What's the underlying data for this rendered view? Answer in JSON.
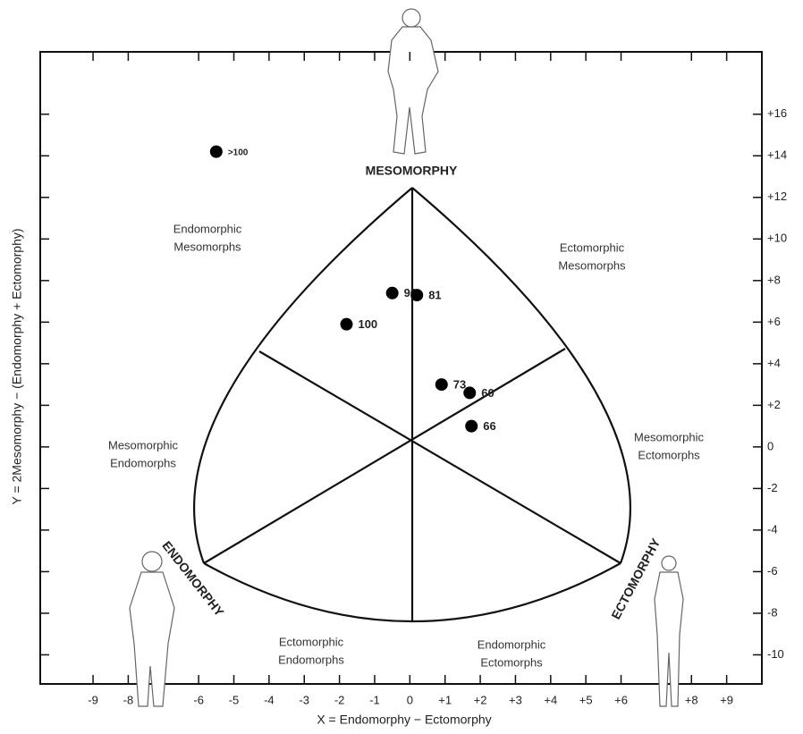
{
  "chart_data": {
    "type": "scatter",
    "x_label": "X = Endomorphy − Ectomorphy",
    "y_label": "Y = 2Mesomorphy − (Endomorphy + Ectomorphy)",
    "series": [
      {
        "color": "#000000",
        "x": [
          -5.5,
          -0.5,
          0.2,
          -1.8,
          0.9,
          1.7,
          1.75
        ],
        "values": [
          14.2,
          7.4,
          7.3,
          5.9,
          3.0,
          2.6,
          1.0
        ],
        "labels": [
          ">100",
          "90",
          "81",
          "100",
          "73",
          "60",
          "66"
        ]
      }
    ],
    "xlim": [
      -10.5,
      10
    ],
    "ylim": [
      -11.4,
      19
    ],
    "xticks": [
      -9,
      -8,
      -6,
      -5,
      -4,
      -3,
      -2,
      -1,
      0,
      {
        "value": 1,
        "label": "+1"
      },
      {
        "value": 2,
        "label": "+2"
      },
      {
        "value": 3,
        "label": "+3"
      },
      {
        "value": 4,
        "label": "+4"
      },
      {
        "value": 5,
        "label": "+5"
      },
      {
        "value": 6,
        "label": "+6"
      },
      {
        "value": 8,
        "label": "+8"
      },
      {
        "value": 9,
        "label": "+9"
      }
    ],
    "yticks": [
      {
        "value": 16,
        "label": "+16"
      },
      {
        "value": 14,
        "label": "+14"
      },
      {
        "value": 12,
        "label": "+12"
      },
      {
        "value": 10,
        "label": "+10"
      },
      {
        "value": 8,
        "label": "+8"
      },
      {
        "value": 6,
        "label": "+6"
      },
      {
        "value": 4,
        "label": "+4"
      },
      {
        "value": 2,
        "label": "+2"
      },
      0,
      -2,
      -4,
      -6,
      -8,
      -10
    ],
    "vertex_labels": [
      "MESOMORPHY",
      "ENDOMORPHY",
      "ECTOMORPHY"
    ],
    "region_labels": [
      [
        "Endomorphic",
        "Mesomorphs"
      ],
      [
        "Ectomorphic",
        "Mesomorphs"
      ],
      [
        "Mesomorphic",
        "Endomorphs"
      ],
      [
        "Mesomorphic",
        "Ectomorphs"
      ],
      [
        "Ectomorphic",
        "Endomorphs"
      ],
      [
        "Endomorphic",
        "Ectomorphs"
      ]
    ]
  }
}
